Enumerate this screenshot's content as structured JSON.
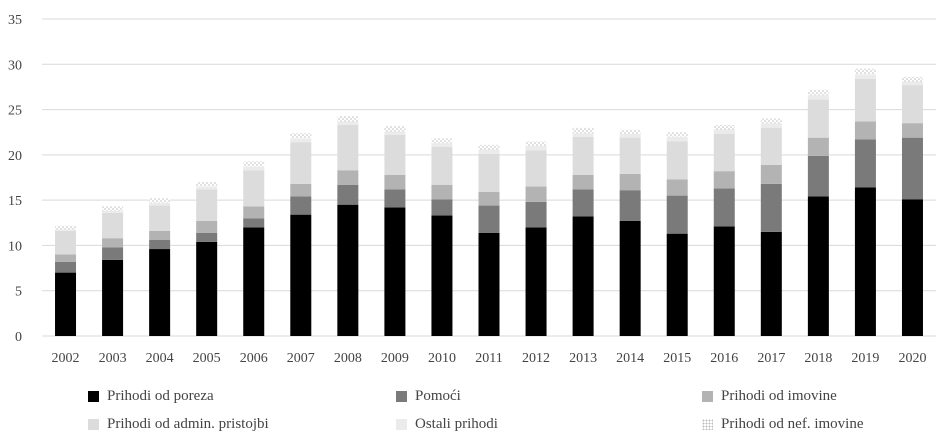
{
  "chart_data": {
    "type": "bar",
    "stacked": true,
    "title": "",
    "xlabel": "",
    "ylabel": "",
    "ylim": [
      0,
      35
    ],
    "yticks": [
      0,
      5,
      10,
      15,
      20,
      25,
      30,
      35
    ],
    "grid": true,
    "legend_position": "bottom",
    "categories": [
      "2002",
      "2003",
      "2004",
      "2005",
      "2006",
      "2007",
      "2008",
      "2009",
      "2010",
      "2011",
      "2012",
      "2013",
      "2014",
      "2015",
      "2016",
      "2017",
      "2018",
      "2019",
      "2020"
    ],
    "series": [
      {
        "name": "Prihodi od poreza",
        "color": "#000000",
        "values": [
          7.0,
          8.4,
          9.6,
          10.4,
          12.0,
          13.4,
          14.5,
          14.2,
          13.3,
          11.4,
          12.0,
          13.2,
          12.7,
          11.3,
          12.1,
          11.5,
          15.4,
          16.4,
          15.1
        ]
      },
      {
        "name": "Pomoći",
        "color": "#7a7a7a",
        "values": [
          1.2,
          1.4,
          1.0,
          1.0,
          1.0,
          2.0,
          2.2,
          2.0,
          1.8,
          3.0,
          2.8,
          3.0,
          3.4,
          4.2,
          4.2,
          5.3,
          4.5,
          5.3,
          6.8
        ]
      },
      {
        "name": "Prihodi od imovine",
        "color": "#b3b3b3",
        "values": [
          0.8,
          1.0,
          1.0,
          1.3,
          1.3,
          1.4,
          1.6,
          1.6,
          1.6,
          1.5,
          1.7,
          1.6,
          1.8,
          1.8,
          1.9,
          2.1,
          2.0,
          2.0,
          1.6
        ]
      },
      {
        "name": "Prihodi od admin. pristojbi",
        "color": "#dcdcdc",
        "values": [
          2.6,
          2.8,
          2.8,
          3.5,
          4.0,
          4.6,
          5.0,
          4.4,
          4.2,
          4.2,
          4.0,
          4.2,
          4.0,
          4.2,
          4.1,
          4.1,
          4.2,
          4.7,
          4.2
        ]
      },
      {
        "name": "Ostali prihodi",
        "color": "#ebebeb",
        "values": [
          0.2,
          0.2,
          0.3,
          0.3,
          0.4,
          0.4,
          0.4,
          0.4,
          0.4,
          0.5,
          0.5,
          0.4,
          0.4,
          0.5,
          0.5,
          0.5,
          0.5,
          0.5,
          0.4
        ]
      },
      {
        "name": "Prihodi od nef. imovine",
        "color": "#f4f4f4",
        "pattern": "dotted",
        "values": [
          0.4,
          0.5,
          0.5,
          0.5,
          0.6,
          0.6,
          0.6,
          0.6,
          0.5,
          0.5,
          0.5,
          0.6,
          0.5,
          0.5,
          0.5,
          0.5,
          0.6,
          0.6,
          0.5
        ]
      }
    ]
  }
}
